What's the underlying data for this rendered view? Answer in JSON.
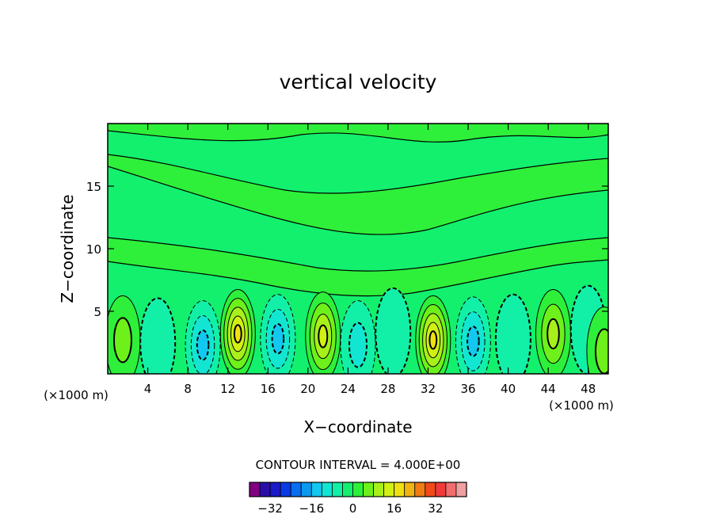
{
  "chart_data": {
    "type": "contour",
    "title": "vertical velocity",
    "xlabel": "X−coordinate",
    "ylabel": "Z−coordinate",
    "x_unit_left": "(×1000 m)",
    "x_unit_right": "(×1000 m)",
    "xlim": [
      0,
      50
    ],
    "ylim": [
      0,
      20
    ],
    "x_ticks": [
      4,
      8,
      12,
      16,
      20,
      24,
      28,
      32,
      36,
      40,
      44,
      48
    ],
    "y_ticks": [
      5,
      10,
      15
    ],
    "grid": false,
    "contour_interval_label": "CONTOUR INTERVAL = 4.000E+00",
    "contour_interval": 4.0,
    "colorbar": {
      "levels": [
        -36,
        -32,
        -28,
        -24,
        -20,
        -16,
        -12,
        -8,
        -4,
        0,
        4,
        8,
        12,
        16,
        20,
        24,
        28,
        32,
        36
      ],
      "colors": [
        "#800080",
        "#2a0ea8",
        "#1a1ac8",
        "#0a3ae6",
        "#0a6ef0",
        "#0a9af0",
        "#12c8f0",
        "#12e6d2",
        "#12f0a8",
        "#12f06e",
        "#2ef03a",
        "#6ef01a",
        "#a8f01a",
        "#d2f012",
        "#f0e012",
        "#f0b412",
        "#f07c12",
        "#f04a1a",
        "#f03a3a",
        "#f06e6e",
        "#f0a0a0"
      ],
      "tick_labels": [
        "−32",
        "−16",
        "0",
        "16",
        "32"
      ],
      "tick_values": [
        -32,
        -16,
        0,
        16,
        32
      ]
    },
    "features": [
      {
        "x": 1.5,
        "z": 2.7,
        "w": 8
      },
      {
        "x": 5,
        "z": 2.5,
        "w": -6
      },
      {
        "x": 9.5,
        "z": 2.3,
        "w": -14
      },
      {
        "x": 13,
        "z": 3.2,
        "w": 22
      },
      {
        "x": 17,
        "z": 2.8,
        "w": -12
      },
      {
        "x": 21.5,
        "z": 3.0,
        "w": 18
      },
      {
        "x": 25,
        "z": 2.3,
        "w": -10
      },
      {
        "x": 28.5,
        "z": 3.3,
        "w": -6
      },
      {
        "x": 32.5,
        "z": 2.7,
        "w": 20
      },
      {
        "x": 36.5,
        "z": 2.6,
        "w": -12
      },
      {
        "x": 40.5,
        "z": 2.8,
        "w": -6
      },
      {
        "x": 44.5,
        "z": 3.2,
        "w": 14
      },
      {
        "x": 48,
        "z": 3.5,
        "w": -5
      },
      {
        "x": 49.6,
        "z": 1.8,
        "w": 8
      }
    ]
  }
}
